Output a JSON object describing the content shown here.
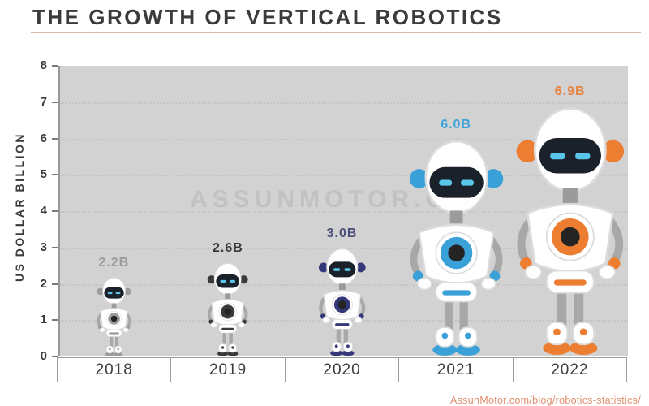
{
  "page": {
    "title": "THE GROWTH OF VERTICAL ROBOTICS",
    "title_color": "#3b3b3b",
    "underline_color": "#dcb9a2",
    "watermark": "ASSUNMOTOR.CO",
    "footer_link": "AssunMotor.com/blog/robotics-statistics/",
    "footer_color": "#e09070"
  },
  "chart_data": {
    "type": "bar",
    "style": "pictogram - robot figure height encodes value",
    "title": "THE GROWTH OF VERTICAL ROBOTICS",
    "categories": [
      "2018",
      "2019",
      "2020",
      "2021",
      "2022"
    ],
    "values": [
      2.2,
      2.6,
      3.0,
      6.0,
      6.9
    ],
    "value_labels": [
      "2.2B",
      "2.6B",
      "3.0B",
      "6.0B",
      "6.9B"
    ],
    "robot_accent_colors": [
      "#9c9c9c",
      "#3a3a3a",
      "#343878",
      "#39a0d8",
      "#ed7d31"
    ],
    "value_label_colors": [
      "#9c9c9c",
      "#3a3a3a",
      "#4c4f78",
      "#3fa3d8",
      "#e8823e"
    ],
    "xlabel": "",
    "ylabel": "US DOLLAR BILLION",
    "ylim": [
      0,
      8
    ],
    "yticks": [
      0,
      1,
      2,
      3,
      4,
      5,
      6,
      7,
      8
    ],
    "grid": "horizontal dotted",
    "plot_bg": "#d2d2d2",
    "legend": "none"
  }
}
